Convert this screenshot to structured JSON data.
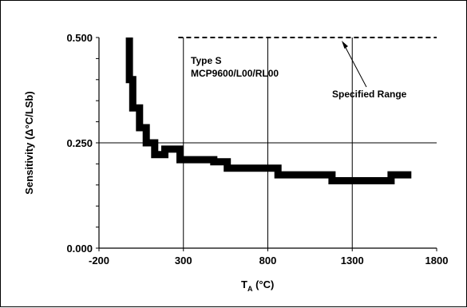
{
  "chart_data": {
    "type": "line",
    "xlabel_main": "T",
    "xlabel_sub": "A",
    "xlabel_unit": " (°C)",
    "ylabel": "Sensitivity (Δ°C/LSb)",
    "xlim": [
      -200,
      1800
    ],
    "ylim": [
      0,
      0.5
    ],
    "x_ticks": [
      -200,
      300,
      800,
      1300,
      1800
    ],
    "y_ticks": [
      0.0,
      0.25,
      0.5
    ],
    "x_tick_labels": [
      "-200",
      "300",
      "800",
      "1300",
      "1800"
    ],
    "y_tick_labels": [
      "0.000",
      "0.250",
      "0.500"
    ],
    "grid": true,
    "series": [
      {
        "style": "thick-step",
        "x": [
          -20,
          -20,
          0,
          0,
          40,
          40,
          80,
          80,
          130,
          130,
          190,
          190,
          280,
          280,
          480,
          480,
          560,
          560,
          860,
          860,
          1180,
          1180,
          1530,
          1530,
          1650
        ],
        "y": [
          0.5,
          0.4,
          0.4,
          0.333,
          0.333,
          0.286,
          0.286,
          0.25,
          0.25,
          0.222,
          0.222,
          0.235,
          0.235,
          0.21,
          0.21,
          0.205,
          0.205,
          0.19,
          0.19,
          0.174,
          0.174,
          0.16,
          0.16,
          0.174,
          0.174
        ]
      },
      {
        "style": "dashed",
        "x": [
          270,
          1800
        ],
        "y": [
          0.5,
          0.5
        ]
      }
    ],
    "annotations": [
      {
        "lines": [
          "Type S",
          "MCP9600/L00/RL00"
        ]
      },
      {
        "text": "Specified Range"
      }
    ]
  }
}
